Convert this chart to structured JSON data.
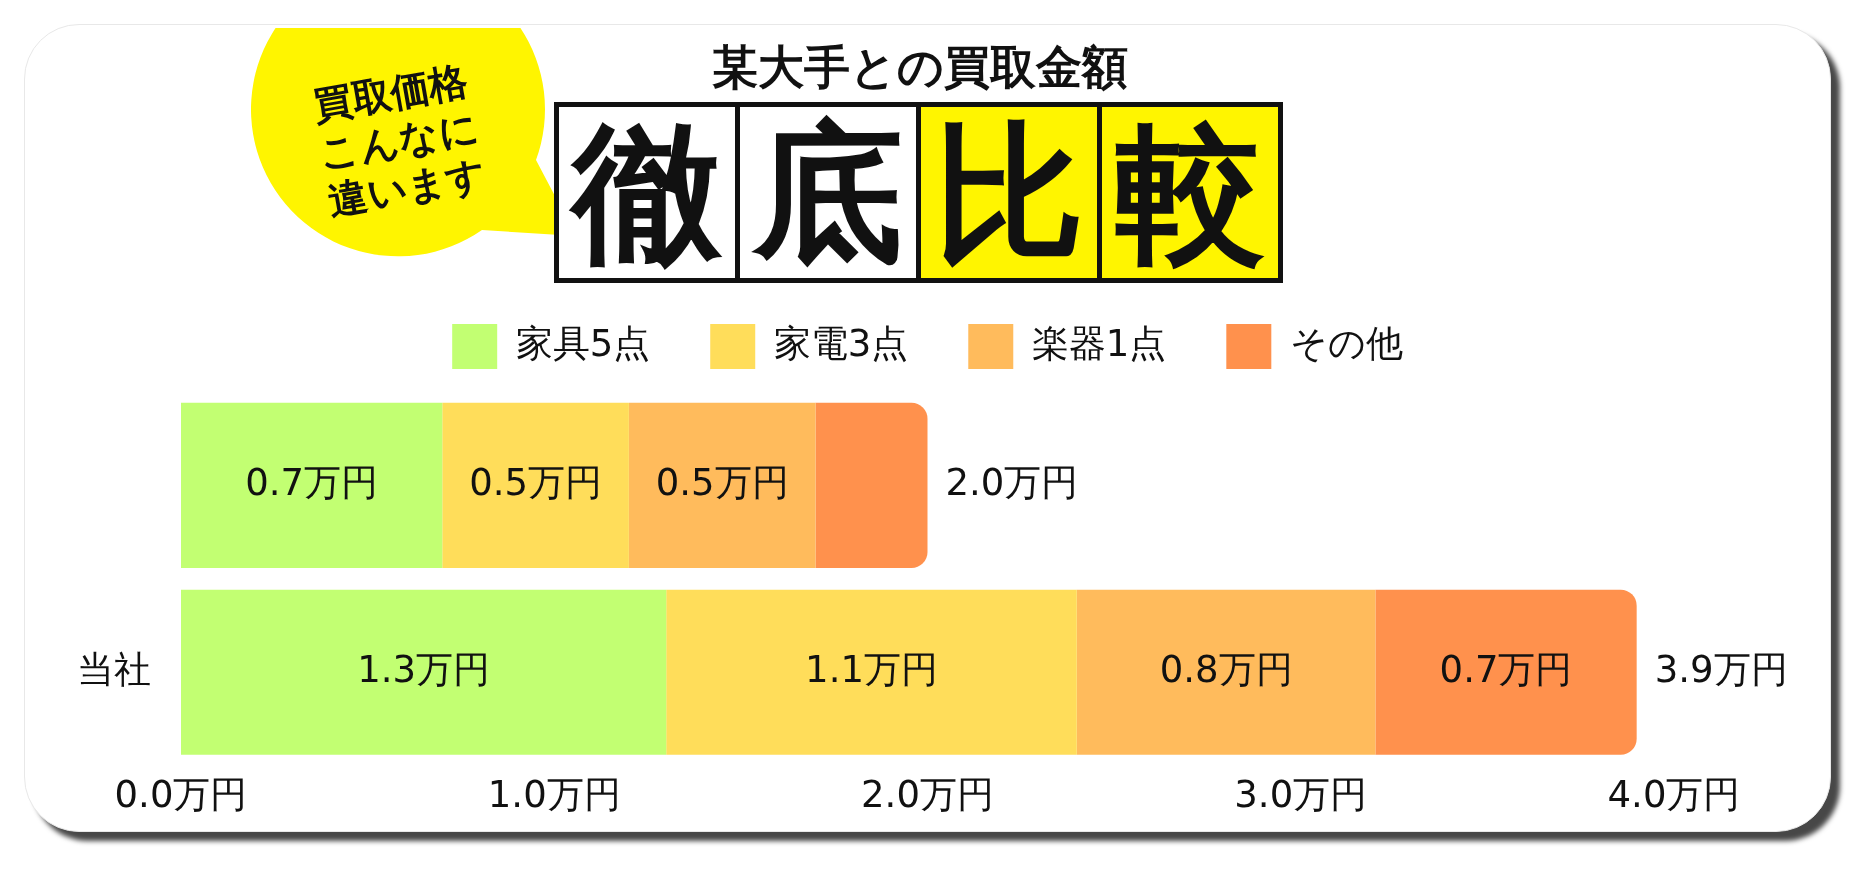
{
  "chart_data": {
    "type": "bar",
    "orientation": "horizontal",
    "stacked": true,
    "title": "徹底比較",
    "subtitle": "某大手との買取金額",
    "annotations": [
      "買取価格こんなに違います"
    ],
    "categories": [
      null,
      "当社"
    ],
    "series": [
      {
        "name": "家具5点",
        "color": "#c2ff72",
        "values": [
          0.7,
          1.3
        ],
        "value_labels": [
          "0.7万円",
          "1.3万円"
        ]
      },
      {
        "name": "家電3点",
        "color": "#ffdd5a",
        "values": [
          0.5,
          1.1
        ],
        "value_labels": [
          "0.5万円",
          "1.1万円"
        ]
      },
      {
        "name": "楽器1点",
        "color": "#ffbb5c",
        "values": [
          0.5,
          0.8
        ],
        "value_labels": [
          "0.5万円",
          "0.8万円"
        ]
      },
      {
        "name": "その他",
        "color": "#ff914d",
        "values": [
          0.3,
          0.7
        ],
        "value_labels": [
          null,
          "0.7万円"
        ]
      }
    ],
    "totals": [
      "2.0万円",
      "3.9万円"
    ],
    "xlim": [
      0,
      4
    ],
    "xticks": [
      {
        "value": 0,
        "label": "0.0万円"
      },
      {
        "value": 1,
        "label": "1.0万円"
      },
      {
        "value": 2,
        "label": "2.0万円"
      },
      {
        "value": 3,
        "label": "3.0万円"
      },
      {
        "value": 4,
        "label": "4.0万円"
      }
    ],
    "legend": "top",
    "grid": false
  }
}
